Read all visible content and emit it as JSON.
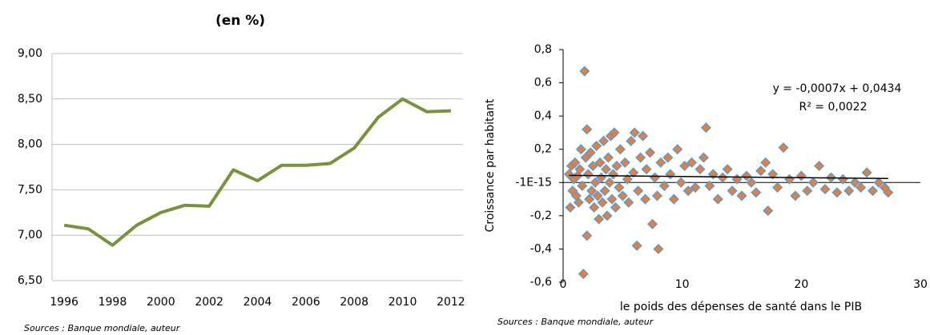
{
  "chart_data": [
    {
      "type": "line",
      "title": "(en %)",
      "source": "Sources : Banque mondiale, auteur",
      "categories": [
        "1996",
        null,
        "1998",
        null,
        "2000",
        null,
        "2002",
        null,
        "2004",
        null,
        "2006",
        null,
        "2008",
        null,
        "2010",
        null,
        "2012"
      ],
      "series": [
        {
          "name": null,
          "color": "#77933c",
          "values": [
            7.11,
            7.07,
            6.89,
            7.11,
            7.25,
            7.33,
            7.32,
            7.72,
            7.6,
            7.77,
            7.77,
            7.79,
            7.96,
            8.3,
            8.5,
            8.36,
            8.37
          ]
        }
      ],
      "ylim": [
        6.5,
        9.0
      ],
      "yticks": [
        {
          "value": 6.5,
          "label": "6,50"
        },
        {
          "value": 7.0,
          "label": "7,00"
        },
        {
          "value": 7.5,
          "label": "7,50"
        },
        {
          "value": 8.0,
          "label": "8,00"
        },
        {
          "value": 8.5,
          "label": "8,50"
        },
        {
          "value": 9.0,
          "label": "9,00"
        }
      ],
      "grid": true
    },
    {
      "type": "scatter",
      "source": "Sources : Banque mondiale, auteur",
      "xlabel": "le poids des dépenses de santé dans le PIB",
      "ylabel": "Croissance par habitant",
      "annotations": [
        "y = -0,0007x + 0,0434",
        "R² = 0,0022"
      ],
      "trendline": {
        "slope": -0.0007,
        "intercept": 0.0434
      },
      "color": "#ed7d31",
      "edgecolor": "#5b9bd5",
      "x": [
        0.5,
        0.6,
        0.7,
        0.8,
        0.9,
        1.0,
        1.1,
        1.2,
        1.3,
        1.4,
        1.5,
        1.6,
        1.7,
        1.8,
        1.9,
        2.0,
        2.0,
        2.1,
        2.2,
        2.3,
        2.4,
        2.5,
        2.6,
        2.7,
        2.8,
        2.9,
        3.0,
        3.1,
        3.2,
        3.3,
        3.4,
        3.5,
        3.6,
        3.7,
        3.8,
        3.9,
        4.0,
        4.1,
        4.2,
        4.3,
        4.4,
        4.5,
        4.7,
        4.8,
        5.0,
        5.2,
        5.4,
        5.5,
        5.7,
        5.9,
        6.0,
        6.2,
        6.3,
        6.5,
        6.7,
        6.9,
        7.0,
        7.3,
        7.5,
        7.7,
        7.9,
        8.0,
        8.2,
        8.5,
        8.8,
        9.0,
        9.3,
        9.6,
        9.9,
        10.2,
        10.5,
        10.8,
        11.1,
        11.5,
        11.8,
        12.0,
        12.3,
        12.6,
        13.0,
        13.4,
        13.8,
        14.2,
        14.6,
        15.0,
        15.4,
        15.8,
        16.2,
        16.6,
        17.0,
        17.2,
        17.6,
        18.0,
        18.5,
        19.0,
        19.5,
        20.0,
        20.5,
        21.0,
        21.5,
        22.0,
        22.5,
        23.0,
        23.5,
        24.0,
        24.5,
        25.0,
        25.5,
        26.0,
        26.5,
        27.0,
        27.3
      ],
      "values": [
        0.05,
        -0.15,
        0.1,
        -0.05,
        0.02,
        0.12,
        -0.08,
        0.04,
        -0.12,
        0.08,
        0.2,
        -0.02,
        -0.55,
        0.67,
        0.15,
        -0.32,
        0.32,
        0.05,
        -0.1,
        0.18,
        -0.05,
        0.1,
        -0.15,
        0.0,
        0.22,
        -0.08,
        -0.22,
        0.12,
        0.03,
        -0.12,
        0.25,
        -0.05,
        0.08,
        -0.2,
        0.15,
        0.0,
        0.28,
        -0.1,
        0.05,
        0.3,
        -0.15,
        0.1,
        -0.03,
        0.2,
        -0.08,
        0.12,
        0.02,
        -0.12,
        0.25,
        0.06,
        0.3,
        -0.38,
        -0.05,
        0.15,
        0.28,
        -0.1,
        0.08,
        0.18,
        -0.25,
        0.03,
        -0.08,
        -0.4,
        0.12,
        -0.02,
        0.15,
        0.05,
        -0.1,
        0.2,
        0.0,
        0.1,
        -0.05,
        0.12,
        -0.03,
        0.08,
        0.15,
        0.33,
        -0.02,
        0.05,
        -0.1,
        0.03,
        0.08,
        -0.05,
        0.02,
        -0.08,
        0.04,
        0.0,
        -0.06,
        0.07,
        0.12,
        -0.17,
        0.05,
        -0.03,
        0.21,
        0.02,
        -0.08,
        0.04,
        -0.05,
        0.0,
        0.1,
        -0.04,
        0.03,
        -0.06,
        0.02,
        -0.05,
        0.0,
        -0.03,
        0.06,
        -0.05,
        0.0,
        -0.03,
        -0.06
      ],
      "xlim": [
        0,
        30
      ],
      "xticks": [
        0,
        10,
        20,
        30
      ],
      "ylim": [
        -0.6,
        0.8
      ],
      "yticks": [
        {
          "value": -0.6,
          "label": "-0,6"
        },
        {
          "value": -0.4,
          "label": "-0,4"
        },
        {
          "value": -0.2,
          "label": "-0,2"
        },
        {
          "value": 0,
          "label": "-1E-15"
        },
        {
          "value": 0.2,
          "label": "0,2"
        },
        {
          "value": 0.4,
          "label": "0,4"
        },
        {
          "value": 0.6,
          "label": "0,6"
        },
        {
          "value": 0.8,
          "label": "0,8"
        }
      ],
      "grid": false
    }
  ]
}
